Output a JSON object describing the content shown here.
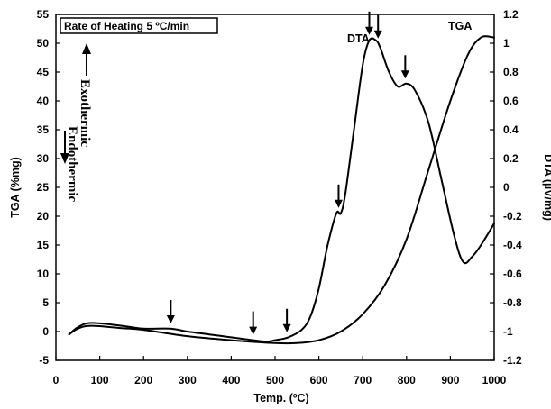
{
  "chart_data": {
    "type": "line",
    "title": "",
    "xlabel": "Temp. (ºC)",
    "ylabel_left": "TGA (%mg)",
    "ylabel_right": "DTA (µV/mg)",
    "xlim": [
      0,
      1000
    ],
    "ylim_left": [
      -5,
      55
    ],
    "ylim_right": [
      -1.2,
      1.2
    ],
    "x_ticks": [
      "0",
      "100",
      "200",
      "300",
      "400",
      "500",
      "600",
      "700",
      "800",
      "900",
      "1000"
    ],
    "y_left_ticks": [
      "-5",
      "0",
      "5",
      "10",
      "15",
      "20",
      "25",
      "30",
      "35",
      "40",
      "45",
      "50",
      "55"
    ],
    "y_right_ticks": [
      "-1.2",
      "-1",
      "-0.8",
      "-0.6",
      "-0.4",
      "-0.2",
      "0",
      "0.2",
      "0.4",
      "0.6",
      "0.8",
      "1",
      "1.2"
    ],
    "grid": false,
    "annotation_box": "Rate of Heating 5 ºC/min",
    "endothermic_label": "Endothermic",
    "exothermic_label": "Exothermic",
    "series": [
      {
        "name": "TGA",
        "axis": "left",
        "x": [
          30,
          50,
          80,
          150,
          200,
          300,
          400,
          500,
          550,
          600,
          650,
          700,
          750,
          800,
          850,
          900,
          940,
          970,
          1000
        ],
        "y": [
          -0.5,
          0.5,
          1.0,
          0.6,
          0.3,
          -0.8,
          -1.5,
          -2.0,
          -2.0,
          -1.5,
          0.0,
          3.0,
          8.0,
          16.0,
          28.0,
          40.0,
          48.0,
          51.0,
          51.0
        ]
      },
      {
        "name": "DTA",
        "axis": "right",
        "x": [
          30,
          50,
          80,
          150,
          200,
          260,
          300,
          350,
          400,
          450,
          480,
          500,
          530,
          560,
          580,
          600,
          620,
          640,
          650,
          660,
          680,
          700,
          715,
          730,
          740,
          760,
          780,
          800,
          820,
          850,
          880,
          910,
          930,
          950,
          970,
          1000
        ],
        "y": [
          -1.02,
          -0.97,
          -0.94,
          -0.96,
          -0.98,
          -0.98,
          -1.0,
          -1.02,
          -1.04,
          -1.06,
          -1.07,
          -1.06,
          -1.04,
          -0.99,
          -0.9,
          -0.7,
          -0.4,
          -0.18,
          -0.18,
          -0.05,
          0.4,
          0.85,
          1.02,
          1.02,
          0.97,
          0.8,
          0.7,
          0.72,
          0.67,
          0.45,
          0.05,
          -0.35,
          -0.52,
          -0.48,
          -0.4,
          -0.25
        ]
      }
    ],
    "arrows_at_x": [
      262,
      450,
      527,
      645,
      715,
      735,
      797
    ]
  }
}
